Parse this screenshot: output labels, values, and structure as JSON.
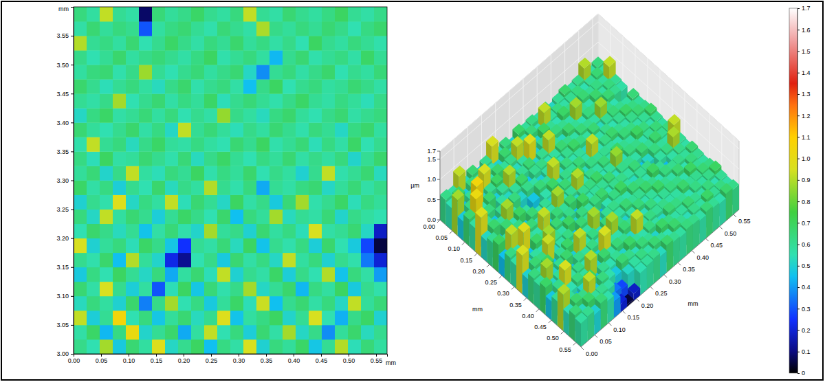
{
  "chart_data": [
    {
      "type": "heatmap",
      "xlim": [
        0,
        0.57
      ],
      "ylim": [
        3,
        3.6
      ],
      "xticks": [
        {
          "value": 0,
          "label": "0.00"
        },
        0.05,
        {
          "value": 0.1,
          "label": "0.10"
        },
        0.15,
        {
          "value": 0.2,
          "label": "0.20"
        },
        0.25,
        {
          "value": 0.3,
          "label": "0.30"
        },
        0.35,
        {
          "value": 0.4,
          "label": "0.40"
        },
        0.45,
        {
          "value": 0.5,
          "label": "0.50"
        },
        0.55
      ],
      "yticks": [
        {
          "value": 3,
          "label": "3.00"
        },
        3.05,
        {
          "value": 3.1,
          "label": "3.10"
        },
        3.15,
        {
          "value": 3.2,
          "label": "3.20"
        },
        3.25,
        {
          "value": 3.3,
          "label": "3.30"
        },
        3.35,
        {
          "value": 3.4,
          "label": "3.40"
        },
        3.45,
        {
          "value": 3.5,
          "label": "3.50"
        },
        3.55
      ],
      "xlabel": "mm",
      "ylabel": "mm",
      "cells": [
        [
          0.62,
          0.55,
          0.88,
          0.48,
          0.66,
          0.58,
          0.97,
          0.52,
          0.61,
          0.69,
          0.45,
          0.63,
          0.57,
          0.95,
          0.5,
          0.64,
          0.59,
          0.68,
          0.47,
          0.6,
          0.9,
          0.54,
          0.65,
          0.58
        ],
        [
          0.57,
          0.68,
          0.44,
          0.63,
          1.02,
          0.51,
          0.6,
          0.67,
          0.42,
          0.58,
          0.92,
          0.55,
          0.64,
          0.49,
          0.66,
          0.57,
          0.88,
          0.52,
          0.62,
          0.38,
          0.59,
          0.67,
          0.53,
          0.61
        ],
        [
          0.92,
          0.49,
          0.6,
          1.05,
          0.55,
          0.64,
          0.47,
          0.59,
          0.66,
          0.53,
          0.61,
          0.97,
          0.46,
          0.58,
          0.63,
          0.69,
          0.51,
          0.6,
          0.95,
          0.55,
          0.43,
          0.62,
          0.68,
          0.5
        ],
        [
          0.53,
          0.64,
          0.58,
          0.5,
          0.67,
          0.36,
          0.62,
          0.88,
          0.55,
          0.63,
          0.48,
          0.59,
          0.68,
          0.54,
          0.93,
          0.45,
          0.61,
          0.66,
          0.57,
          0.64,
          0.52,
          0.92,
          0.59,
          0.65
        ],
        [
          0.66,
          0.57,
          0.95,
          0.61,
          0.49,
          0.58,
          0.3,
          0.54,
          0.69,
          0.47,
          0.65,
          0.56,
          0.62,
          0.88,
          0.52,
          0.6,
          0.67,
          0.44,
          0.63,
          0.58,
          0.69,
          0.48,
          0.61,
          0.56
        ],
        [
          0.48,
          0.63,
          0.55,
          0.69,
          0.6,
          0.52,
          0.64,
          0.42,
          0.58,
          0.66,
          0.54,
          0.92,
          0.5,
          0.61,
          0.57,
          0.68,
          0.49,
          0.62,
          0.55,
          0.9,
          0.46,
          0.64,
          0.57,
          0.4
        ],
        [
          0.61,
          0.56,
          0.67,
          0.45,
          0.9,
          0.59,
          0.51,
          0.22,
          0.12,
          0.55,
          0.62,
          0.48,
          0.66,
          0.57,
          0.63,
          0.52,
          0.92,
          0.58,
          0.64,
          0.5,
          0.61,
          0.56,
          0.35,
          0.2
        ],
        [
          0.95,
          0.5,
          0.59,
          0.64,
          0.54,
          0.68,
          0.62,
          0.47,
          0.25,
          0.6,
          0.57,
          0.65,
          0.53,
          0.69,
          0.46,
          0.61,
          0.56,
          0.63,
          0.49,
          0.67,
          0.55,
          0.48,
          0.28,
          0.05
        ],
        [
          0.55,
          0.67,
          0.62,
          0.53,
          0.6,
          0.46,
          0.57,
          0.65,
          0.56,
          0.51,
          0.88,
          0.59,
          0.62,
          0.5,
          0.66,
          0.58,
          0.63,
          0.54,
          0.95,
          0.57,
          0.6,
          0.66,
          0.52,
          0.18
        ],
        [
          0.64,
          0.52,
          0.92,
          0.58,
          0.66,
          0.61,
          0.49,
          0.6,
          0.68,
          0.62,
          0.55,
          0.67,
          0.45,
          0.64,
          0.59,
          0.88,
          0.53,
          0.6,
          0.57,
          0.65,
          0.51,
          0.62,
          0.58,
          0.55
        ],
        [
          0.5,
          0.61,
          0.56,
          0.97,
          0.52,
          0.63,
          0.58,
          0.92,
          0.54,
          0.66,
          0.6,
          0.52,
          0.69,
          0.57,
          0.62,
          0.48,
          0.65,
          0.88,
          0.56,
          0.61,
          0.68,
          0.54,
          0.63,
          0.59
        ],
        [
          0.68,
          0.57,
          0.63,
          0.49,
          0.61,
          0.55,
          0.67,
          0.53,
          0.62,
          0.58,
          0.9,
          0.61,
          0.56,
          0.64,
          0.42,
          0.6,
          0.57,
          0.63,
          0.66,
          0.52,
          0.59,
          0.65,
          0.57,
          0.62
        ],
        [
          0.59,
          0.65,
          0.51,
          0.62,
          0.92,
          0.58,
          0.54,
          0.64,
          0.6,
          0.69,
          0.56,
          0.63,
          0.59,
          0.67,
          0.55,
          0.62,
          0.58,
          0.5,
          0.61,
          0.92,
          0.56,
          0.6,
          0.66,
          0.53
        ],
        [
          0.63,
          0.54,
          0.69,
          0.57,
          0.59,
          0.66,
          0.61,
          0.56,
          0.65,
          0.53,
          0.62,
          0.68,
          0.6,
          0.55,
          0.63,
          0.59,
          0.66,
          0.57,
          0.62,
          0.58,
          0.64,
          0.51,
          0.6,
          0.67
        ],
        [
          0.56,
          0.92,
          0.6,
          0.64,
          0.53,
          0.62,
          0.68,
          0.59,
          0.57,
          0.63,
          0.58,
          0.55,
          0.66,
          0.61,
          0.69,
          0.56,
          0.6,
          0.65,
          0.54,
          0.63,
          0.57,
          0.68,
          0.55,
          0.61
        ],
        [
          0.66,
          0.59,
          0.55,
          0.61,
          0.67,
          0.57,
          0.63,
          0.52,
          0.92,
          0.6,
          0.65,
          0.59,
          0.54,
          0.62,
          0.58,
          0.66,
          0.61,
          0.56,
          0.64,
          0.6,
          0.52,
          0.63,
          0.67,
          0.58
        ],
        [
          0.52,
          0.63,
          0.68,
          0.57,
          0.6,
          0.65,
          0.58,
          0.64,
          0.55,
          0.61,
          0.57,
          0.86,
          0.62,
          0.58,
          0.53,
          0.63,
          0.67,
          0.59,
          0.55,
          0.62,
          0.66,
          0.57,
          0.61,
          0.64
        ],
        [
          0.6,
          0.57,
          0.62,
          0.88,
          0.55,
          0.61,
          0.66,
          0.57,
          0.63,
          0.59,
          0.68,
          0.54,
          0.61,
          0.65,
          0.6,
          0.56,
          0.62,
          0.68,
          0.6,
          0.57,
          0.63,
          0.59,
          0.54,
          0.62
        ],
        [
          0.67,
          0.61,
          0.54,
          0.6,
          0.64,
          0.58,
          0.53,
          0.62,
          0.67,
          0.56,
          0.61,
          0.64,
          0.57,
          0.45,
          0.62,
          0.69,
          0.55,
          0.61,
          0.64,
          0.58,
          0.6,
          0.66,
          0.62,
          0.57
        ],
        [
          0.58,
          0.64,
          0.66,
          0.56,
          0.62,
          0.87,
          0.6,
          0.55,
          0.61,
          0.65,
          0.58,
          0.62,
          0.66,
          0.52,
          0.38,
          0.6,
          0.64,
          0.57,
          0.62,
          0.67,
          0.55,
          0.61,
          0.58,
          0.65
        ],
        [
          0.62,
          0.55,
          0.6,
          0.67,
          0.58,
          0.62,
          0.65,
          0.61,
          0.57,
          0.63,
          0.69,
          0.56,
          0.6,
          0.64,
          0.58,
          0.44,
          0.61,
          0.66,
          0.56,
          0.6,
          0.63,
          0.57,
          0.68,
          0.6
        ],
        [
          0.9,
          0.6,
          0.63,
          0.58,
          0.66,
          0.55,
          0.61,
          0.68,
          0.62,
          0.57,
          0.64,
          0.6,
          0.67,
          0.59,
          0.63,
          0.57,
          0.62,
          0.55,
          0.69,
          0.61,
          0.58,
          0.64,
          0.6,
          0.56
        ],
        [
          0.57,
          0.66,
          0.59,
          0.64,
          0.61,
          0.3,
          0.58,
          0.63,
          0.66,
          0.6,
          0.56,
          0.65,
          0.61,
          0.57,
          0.89,
          0.62,
          0.59,
          0.64,
          0.6,
          0.66,
          0.62,
          0.55,
          0.63,
          0.67
        ],
        [
          0.64,
          0.58,
          0.92,
          0.6,
          0.57,
          0.08,
          0.65,
          0.59,
          0.62,
          0.68,
          0.61,
          0.58,
          0.64,
          0.92,
          0.6,
          0.57,
          0.66,
          0.61,
          0.58,
          0.63,
          0.69,
          0.6,
          0.57,
          0.62
        ]
      ],
      "colorbar": {
        "range": [
          0,
          1.7
        ],
        "ticks": [
          0,
          0.1,
          0.2,
          0.3,
          0.4,
          0.5,
          0.6,
          0.7,
          0.8,
          0.9,
          {
            "value": 1,
            "label": "1.0"
          },
          1.1,
          1.2,
          1.3,
          1.4,
          1.5,
          1.6,
          1.7
        ]
      }
    },
    {
      "type": "surface3d",
      "xlim": [
        0,
        0.57
      ],
      "ylim": [
        0,
        0.57
      ],
      "zlim": [
        0,
        1.7
      ],
      "xticks": [
        {
          "value": 0,
          "label": "0.00"
        },
        0.05,
        {
          "value": 0.1,
          "label": "0.10"
        },
        0.15,
        {
          "value": 0.2,
          "label": "0.20"
        },
        0.25,
        {
          "value": 0.3,
          "label": "0.30"
        },
        0.35,
        {
          "value": 0.4,
          "label": "0.40"
        },
        0.45,
        {
          "value": 0.5,
          "label": "0.50"
        },
        0.55
      ],
      "yticks": [
        {
          "value": 0,
          "label": "0.00"
        },
        0.05,
        {
          "value": 0.1,
          "label": "0.10"
        },
        0.15,
        {
          "value": 0.2,
          "label": "0.20"
        },
        0.25,
        {
          "value": 0.3,
          "label": "0.30"
        },
        0.35,
        {
          "value": 0.4,
          "label": "0.40"
        },
        0.45,
        {
          "value": 0.5,
          "label": "0.50"
        },
        0.55
      ],
      "zticks": [
        {
          "value": 0,
          "label": "0.0"
        },
        0.5,
        {
          "value": 1,
          "label": "1.0"
        },
        1.5,
        1.7
      ],
      "xlabel": "mm",
      "ylabel": "mm",
      "zlabel": "µm"
    }
  ]
}
